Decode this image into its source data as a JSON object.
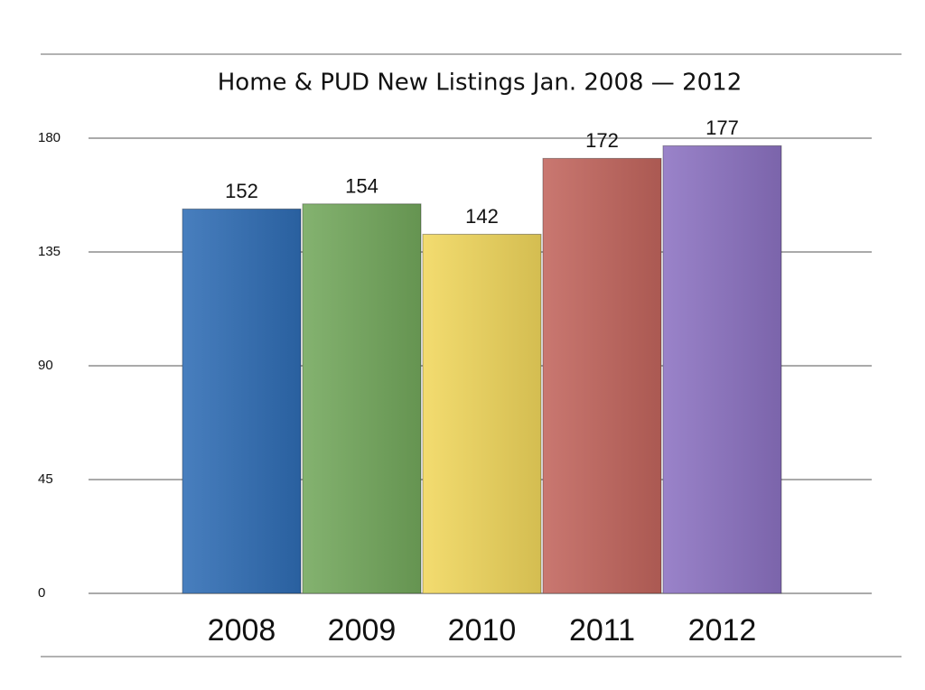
{
  "chart_data": {
    "type": "bar",
    "title": "Home & PUD New Listings Jan. 2008 — 2012",
    "categories": [
      "2008",
      "2009",
      "2010",
      "2011",
      "2012"
    ],
    "values": [
      152,
      154,
      142,
      172,
      177
    ],
    "colors": [
      "#2f6db5",
      "#73a85c",
      "#f1d75c",
      "#c2655d",
      "#8c72c2"
    ],
    "ylim": [
      0,
      180
    ],
    "yticks": [
      0,
      45,
      90,
      135,
      180
    ],
    "grid": true
  }
}
